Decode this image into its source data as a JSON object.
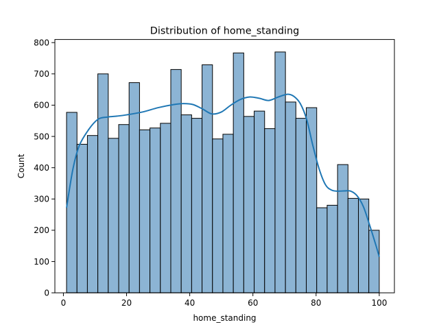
{
  "chart_data": {
    "type": "bar",
    "title": "Distribution of home_standing",
    "xlabel": "home_standing",
    "ylabel": "Count",
    "xlim": [
      -2.7,
      104.8
    ],
    "ylim": [
      0,
      810
    ],
    "xticks": [
      0,
      20,
      40,
      60,
      80,
      100
    ],
    "yticks": [
      0,
      100,
      200,
      300,
      400,
      500,
      600,
      700,
      800
    ],
    "bin_start": 1,
    "bin_width": 3.3,
    "counts": [
      577,
      475,
      503,
      700,
      494,
      538,
      672,
      521,
      527,
      542,
      714,
      569,
      558,
      729,
      492,
      507,
      767,
      564,
      581,
      525,
      770,
      610,
      558,
      592,
      272,
      280,
      410,
      302,
      300,
      200
    ],
    "kde_x": [
      1,
      3,
      5,
      8,
      11,
      14,
      17,
      20,
      25,
      30,
      35,
      38,
      41,
      44,
      47,
      50,
      53,
      56,
      59,
      62,
      65,
      68,
      71,
      73,
      75,
      77,
      79,
      81,
      83,
      85,
      87,
      89,
      91,
      93,
      95,
      97,
      99,
      100
    ],
    "kde_y": [
      272,
      395,
      470,
      522,
      555,
      562,
      565,
      569,
      578,
      592,
      602,
      605,
      602,
      588,
      572,
      578,
      600,
      618,
      626,
      622,
      615,
      626,
      635,
      628,
      605,
      555,
      470,
      395,
      345,
      328,
      325,
      326,
      325,
      310,
      275,
      215,
      150,
      115
    ],
    "colors": {
      "bar_fill": "#8cb4d4",
      "bar_edge": "#000000",
      "kde_line": "#1f77b4"
    }
  }
}
